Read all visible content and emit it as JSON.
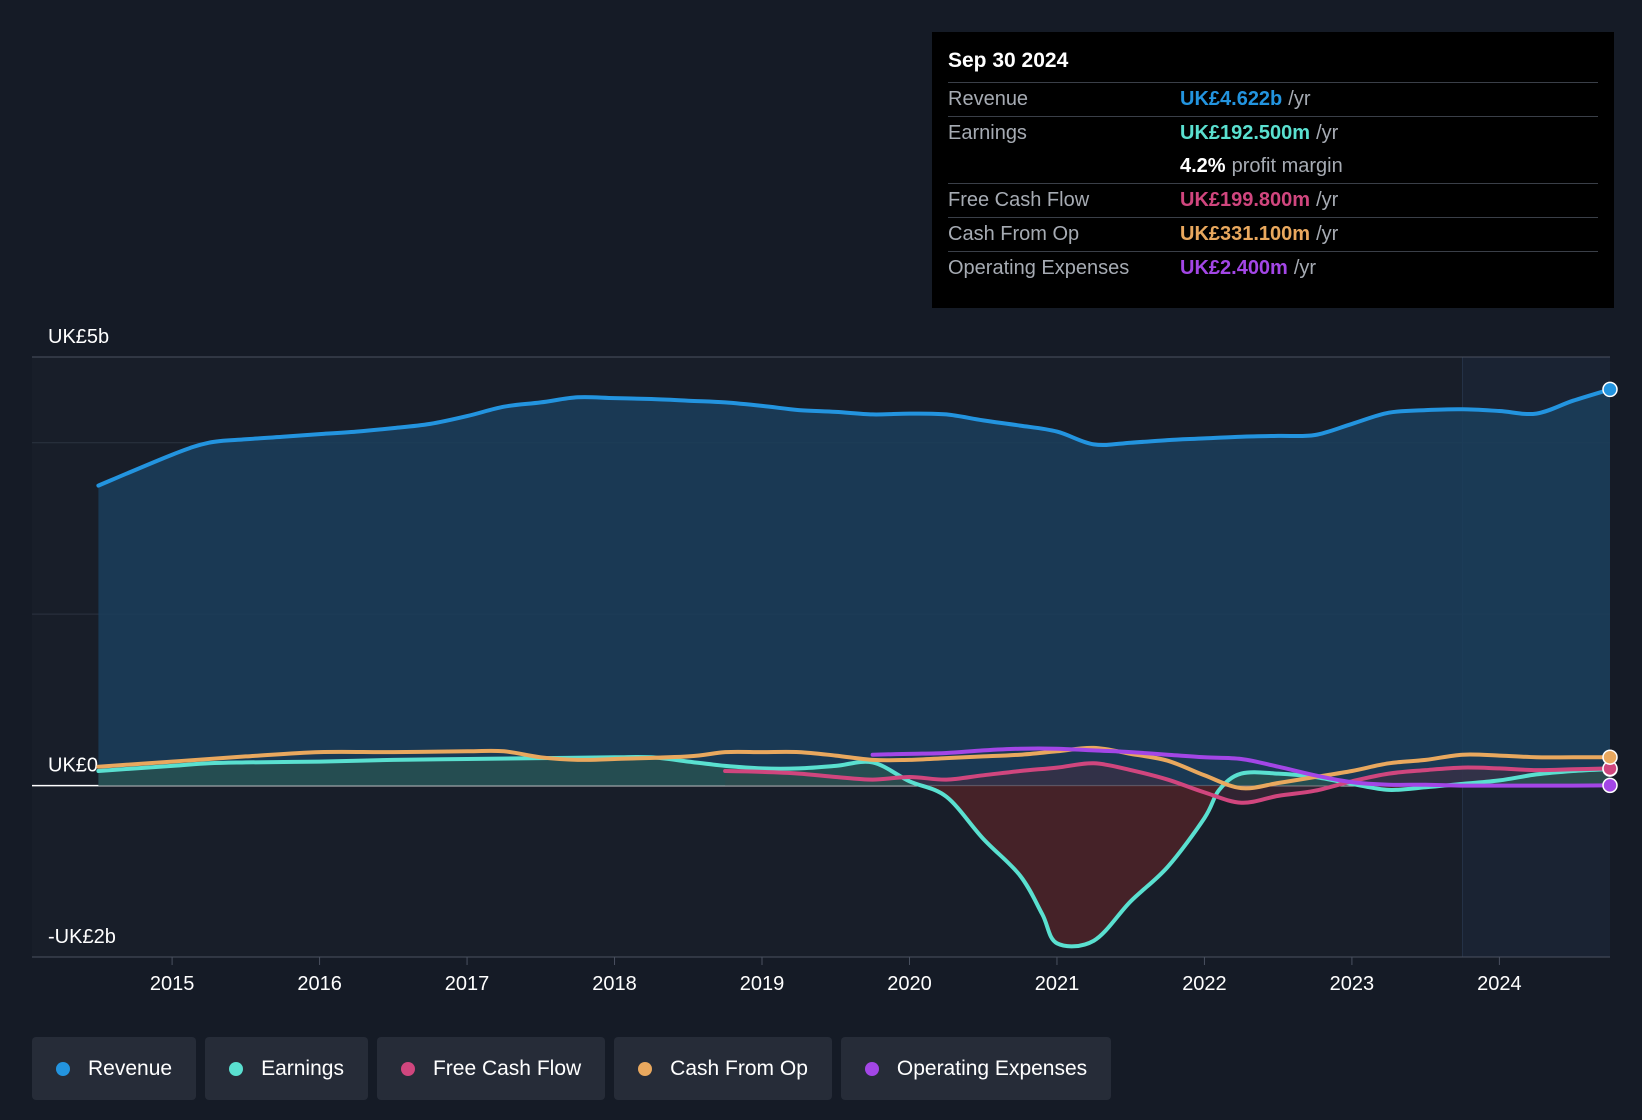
{
  "tooltip": {
    "date": "Sep 30 2024",
    "rows": [
      {
        "label": "Revenue",
        "value": "UK£4.622b",
        "unit": "/yr",
        "color": "#2394df"
      },
      {
        "label": "Earnings",
        "value": "UK£192.500m",
        "unit": "/yr",
        "color": "#5ae0d0"
      },
      {
        "label": "",
        "value": "4.2%",
        "unit": "profit margin",
        "color": "#ffffff"
      },
      {
        "label": "Free Cash Flow",
        "value": "UK£199.800m",
        "unit": "/yr",
        "color": "#d0467e"
      },
      {
        "label": "Cash From Op",
        "value": "UK£331.100m",
        "unit": "/yr",
        "color": "#e9a85e"
      },
      {
        "label": "Operating Expenses",
        "value": "UK£2.400m",
        "unit": "/yr",
        "color": "#a346e6"
      }
    ]
  },
  "legend": [
    {
      "label": "Revenue",
      "color": "#2394df"
    },
    {
      "label": "Earnings",
      "color": "#5ae0d0"
    },
    {
      "label": "Free Cash Flow",
      "color": "#d0467e"
    },
    {
      "label": "Cash From Op",
      "color": "#e9a85e"
    },
    {
      "label": "Operating Expenses",
      "color": "#a346e6"
    }
  ],
  "chart_data": {
    "type": "line",
    "title": "",
    "xlabel": "",
    "ylabel": "",
    "x_ticks": [
      "2015",
      "2016",
      "2017",
      "2018",
      "2019",
      "2020",
      "2021",
      "2022",
      "2023",
      "2024"
    ],
    "y_tick_labels": [
      {
        "value": 5.0,
        "label": "UK£5b"
      },
      {
        "value": 0.0,
        "label": "UK£0"
      },
      {
        "value": -2.0,
        "label": "-UK£2b"
      }
    ],
    "ylim": [
      -2.0,
      5.0
    ],
    "xlim": [
      2014.05,
      2024.75
    ],
    "grid": true,
    "highlight_start": 2023.75,
    "unit": "UK£ billions",
    "series": [
      {
        "name": "Revenue",
        "color": "#2394df",
        "fill": "#1b3e5c",
        "points": [
          [
            2014.5,
            3.5
          ],
          [
            2015.0,
            3.86
          ],
          [
            2015.25,
            4.0
          ],
          [
            2015.5,
            4.04
          ],
          [
            2015.75,
            4.07
          ],
          [
            2016.0,
            4.1
          ],
          [
            2016.25,
            4.13
          ],
          [
            2016.5,
            4.17
          ],
          [
            2016.75,
            4.22
          ],
          [
            2017.0,
            4.31
          ],
          [
            2017.25,
            4.42
          ],
          [
            2017.5,
            4.47
          ],
          [
            2017.75,
            4.53
          ],
          [
            2018.0,
            4.52
          ],
          [
            2018.25,
            4.51
          ],
          [
            2018.5,
            4.49
          ],
          [
            2018.75,
            4.47
          ],
          [
            2019.0,
            4.43
          ],
          [
            2019.25,
            4.38
          ],
          [
            2019.5,
            4.36
          ],
          [
            2019.75,
            4.33
          ],
          [
            2020.0,
            4.34
          ],
          [
            2020.25,
            4.33
          ],
          [
            2020.5,
            4.26
          ],
          [
            2020.75,
            4.2
          ],
          [
            2021.0,
            4.13
          ],
          [
            2021.25,
            3.98
          ],
          [
            2021.5,
            4.0
          ],
          [
            2021.75,
            4.03
          ],
          [
            2022.0,
            4.05
          ],
          [
            2022.25,
            4.07
          ],
          [
            2022.5,
            4.08
          ],
          [
            2022.75,
            4.09
          ],
          [
            2023.0,
            4.22
          ],
          [
            2023.25,
            4.35
          ],
          [
            2023.5,
            4.38
          ],
          [
            2023.75,
            4.39
          ],
          [
            2024.0,
            4.37
          ],
          [
            2024.25,
            4.34
          ],
          [
            2024.5,
            4.49
          ],
          [
            2024.75,
            4.622
          ]
        ]
      },
      {
        "name": "Earnings",
        "color": "#5ae0d0",
        "fill": "#2a5450",
        "neg_fill": "#4a2228",
        "points": [
          [
            2014.5,
            0.17
          ],
          [
            2015.0,
            0.23
          ],
          [
            2015.25,
            0.26
          ],
          [
            2015.5,
            0.27
          ],
          [
            2016.0,
            0.28
          ],
          [
            2016.5,
            0.3
          ],
          [
            2017.0,
            0.31
          ],
          [
            2017.5,
            0.32
          ],
          [
            2018.0,
            0.33
          ],
          [
            2018.25,
            0.33
          ],
          [
            2018.5,
            0.28
          ],
          [
            2018.75,
            0.23
          ],
          [
            2019.0,
            0.2
          ],
          [
            2019.25,
            0.2
          ],
          [
            2019.5,
            0.23
          ],
          [
            2019.75,
            0.27
          ],
          [
            2020.0,
            0.05
          ],
          [
            2020.25,
            -0.13
          ],
          [
            2020.5,
            -0.62
          ],
          [
            2020.75,
            -1.05
          ],
          [
            2020.9,
            -1.5
          ],
          [
            2021.0,
            -1.84
          ],
          [
            2021.25,
            -1.81
          ],
          [
            2021.5,
            -1.35
          ],
          [
            2021.75,
            -0.95
          ],
          [
            2022.0,
            -0.38
          ],
          [
            2022.1,
            -0.05
          ],
          [
            2022.25,
            0.14
          ],
          [
            2022.5,
            0.14
          ],
          [
            2022.75,
            0.1
          ],
          [
            2023.0,
            0.02
          ],
          [
            2023.25,
            -0.05
          ],
          [
            2023.5,
            -0.02
          ],
          [
            2023.75,
            0.02
          ],
          [
            2024.0,
            0.06
          ],
          [
            2024.25,
            0.13
          ],
          [
            2024.5,
            0.17
          ],
          [
            2024.75,
            0.1925
          ]
        ]
      },
      {
        "name": "Free Cash Flow",
        "color": "#d0467e",
        "fill": "#4a2a3c",
        "points": [
          [
            2018.75,
            0.17
          ],
          [
            2019.0,
            0.16
          ],
          [
            2019.25,
            0.14
          ],
          [
            2019.5,
            0.1
          ],
          [
            2019.75,
            0.07
          ],
          [
            2020.0,
            0.1
          ],
          [
            2020.25,
            0.07
          ],
          [
            2020.5,
            0.12
          ],
          [
            2020.75,
            0.17
          ],
          [
            2021.0,
            0.21
          ],
          [
            2021.25,
            0.26
          ],
          [
            2021.5,
            0.18
          ],
          [
            2021.75,
            0.07
          ],
          [
            2022.0,
            -0.08
          ],
          [
            2022.25,
            -0.2
          ],
          [
            2022.5,
            -0.12
          ],
          [
            2022.75,
            -0.06
          ],
          [
            2023.0,
            0.05
          ],
          [
            2023.25,
            0.14
          ],
          [
            2023.5,
            0.18
          ],
          [
            2023.75,
            0.21
          ],
          [
            2024.0,
            0.2
          ],
          [
            2024.25,
            0.18
          ],
          [
            2024.5,
            0.19
          ],
          [
            2024.75,
            0.1998
          ]
        ]
      },
      {
        "name": "Cash From Op",
        "color": "#e9a85e",
        "points": [
          [
            2014.5,
            0.22
          ],
          [
            2015.0,
            0.28
          ],
          [
            2015.5,
            0.34
          ],
          [
            2016.0,
            0.39
          ],
          [
            2016.5,
            0.39
          ],
          [
            2017.0,
            0.4
          ],
          [
            2017.25,
            0.4
          ],
          [
            2017.5,
            0.33
          ],
          [
            2017.75,
            0.3
          ],
          [
            2018.0,
            0.31
          ],
          [
            2018.5,
            0.34
          ],
          [
            2018.75,
            0.39
          ],
          [
            2019.0,
            0.39
          ],
          [
            2019.25,
            0.39
          ],
          [
            2019.5,
            0.35
          ],
          [
            2019.75,
            0.3
          ],
          [
            2020.0,
            0.3
          ],
          [
            2020.25,
            0.32
          ],
          [
            2020.5,
            0.34
          ],
          [
            2020.75,
            0.36
          ],
          [
            2021.0,
            0.4
          ],
          [
            2021.25,
            0.44
          ],
          [
            2021.5,
            0.37
          ],
          [
            2021.75,
            0.29
          ],
          [
            2022.0,
            0.12
          ],
          [
            2022.25,
            -0.03
          ],
          [
            2022.5,
            0.03
          ],
          [
            2022.75,
            0.1
          ],
          [
            2023.0,
            0.17
          ],
          [
            2023.25,
            0.26
          ],
          [
            2023.5,
            0.3
          ],
          [
            2023.75,
            0.36
          ],
          [
            2024.0,
            0.35
          ],
          [
            2024.25,
            0.33
          ],
          [
            2024.5,
            0.33
          ],
          [
            2024.75,
            0.3311
          ]
        ]
      },
      {
        "name": "Operating Expenses",
        "color": "#a346e6",
        "points": [
          [
            2019.75,
            0.36
          ],
          [
            2020.0,
            0.37
          ],
          [
            2020.25,
            0.38
          ],
          [
            2020.5,
            0.41
          ],
          [
            2020.75,
            0.43
          ],
          [
            2021.0,
            0.43
          ],
          [
            2021.25,
            0.41
          ],
          [
            2021.5,
            0.39
          ],
          [
            2021.75,
            0.36
          ],
          [
            2022.0,
            0.33
          ],
          [
            2022.25,
            0.31
          ],
          [
            2022.5,
            0.22
          ],
          [
            2022.75,
            0.12
          ],
          [
            2023.0,
            0.04
          ],
          [
            2023.25,
            0.01
          ],
          [
            2023.5,
            0.01
          ],
          [
            2023.75,
            0.0
          ],
          [
            2024.0,
            0.0
          ],
          [
            2024.5,
            0.0
          ],
          [
            2024.75,
            0.0024
          ]
        ]
      }
    ]
  }
}
